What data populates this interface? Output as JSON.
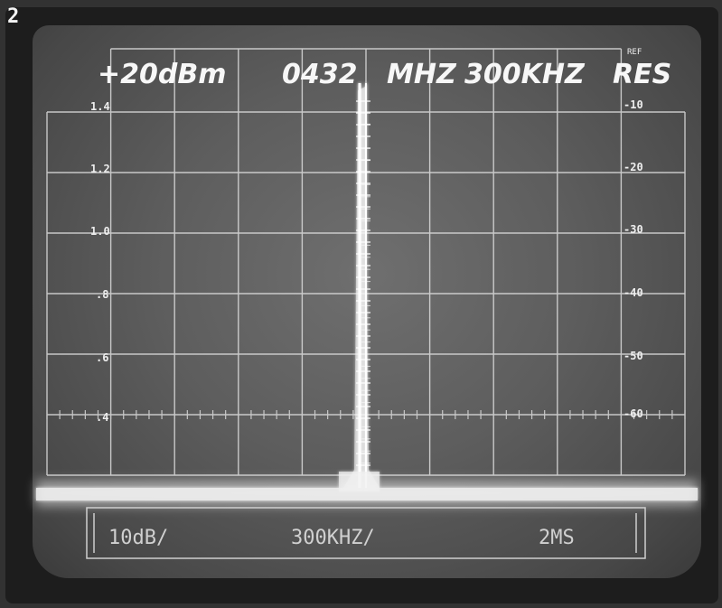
{
  "figure_number": "2",
  "header": {
    "ref_level": "+20dBm",
    "center_freq": "0432",
    "freq_unit": "MHZ",
    "resolution": "300KHZ",
    "res_label": "RES",
    "ref_tag": "REF"
  },
  "left_scale": [
    "1.4",
    "1.2",
    "1.0",
    ".8",
    ".6",
    ".4"
  ],
  "right_scale": [
    "-10",
    "-20",
    "-30",
    "-40",
    "-50",
    "-60"
  ],
  "footer": {
    "vertical_scale": "10dB/",
    "span": "300KHZ/",
    "extra": "2MS"
  },
  "colors": {
    "trace": "#f8f8f8",
    "graticule": "#d8d8d8",
    "screen": "#5e5e5e"
  }
}
